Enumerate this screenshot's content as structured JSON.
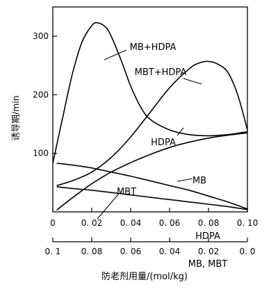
{
  "chart_data": {
    "type": "line",
    "ylabel": "诱导期/min",
    "xlabel": "防老剂用量/(mol/kg)",
    "ylim": [
      0,
      350
    ],
    "x_axes": {
      "top": {
        "label": "HDPA",
        "range": [
          0,
          0.1
        ],
        "ticks": [
          "0",
          "0. 02",
          "0. 04",
          "0. 06",
          "0. 08",
          "0. 10"
        ]
      },
      "bottom": {
        "label": "MB, MBT",
        "range": [
          0.1,
          0.0
        ],
        "ticks": [
          "0. 1",
          "0. 08",
          "0. 06",
          "0. 04",
          "0. 02",
          "0. 0"
        ]
      }
    },
    "y_ticks": [
      "100",
      "200",
      "300"
    ],
    "grid": false,
    "series": [
      {
        "name": "MB+HDPA",
        "points": [
          [
            0,
            83
          ],
          [
            0.005,
            160
          ],
          [
            0.01,
            235
          ],
          [
            0.015,
            290
          ],
          [
            0.02,
            318
          ],
          [
            0.023,
            323
          ],
          [
            0.027,
            316
          ],
          [
            0.03,
            300
          ],
          [
            0.035,
            260
          ],
          [
            0.04,
            215
          ],
          [
            0.045,
            180
          ],
          [
            0.05,
            158
          ],
          [
            0.06,
            140
          ],
          [
            0.07,
            132
          ],
          [
            0.08,
            130
          ],
          [
            0.09,
            132
          ],
          [
            0.1,
            137
          ]
        ]
      },
      {
        "name": "MBT+HDPA",
        "points": [
          [
            0.002,
            45
          ],
          [
            0.01,
            53
          ],
          [
            0.02,
            68
          ],
          [
            0.03,
            93
          ],
          [
            0.04,
            128
          ],
          [
            0.05,
            170
          ],
          [
            0.06,
            212
          ],
          [
            0.07,
            244
          ],
          [
            0.075,
            254
          ],
          [
            0.08,
            257
          ],
          [
            0.085,
            252
          ],
          [
            0.09,
            238
          ],
          [
            0.095,
            200
          ],
          [
            0.1,
            140
          ]
        ]
      },
      {
        "name": "HDPA",
        "points": [
          [
            0.002,
            3
          ],
          [
            0.01,
            24
          ],
          [
            0.02,
            48
          ],
          [
            0.03,
            68
          ],
          [
            0.04,
            84
          ],
          [
            0.05,
            98
          ],
          [
            0.06,
            110
          ],
          [
            0.07,
            119
          ],
          [
            0.08,
            126
          ],
          [
            0.09,
            131
          ],
          [
            0.1,
            135
          ]
        ]
      },
      {
        "name": "MB",
        "points": [
          [
            0.002,
            83
          ],
          [
            0.01,
            80
          ],
          [
            0.02,
            75
          ],
          [
            0.03,
            68
          ],
          [
            0.04,
            61
          ],
          [
            0.05,
            53
          ],
          [
            0.06,
            45
          ],
          [
            0.07,
            37
          ],
          [
            0.08,
            27
          ],
          [
            0.09,
            17
          ],
          [
            0.1,
            5
          ]
        ]
      },
      {
        "name": "MBT",
        "points": [
          [
            0.002,
            43
          ],
          [
            0.01,
            40
          ],
          [
            0.02,
            37
          ],
          [
            0.03,
            33
          ],
          [
            0.04,
            29
          ],
          [
            0.05,
            25
          ],
          [
            0.06,
            21
          ],
          [
            0.07,
            17
          ],
          [
            0.08,
            13
          ],
          [
            0.09,
            9
          ],
          [
            0.1,
            4
          ]
        ]
      }
    ]
  }
}
